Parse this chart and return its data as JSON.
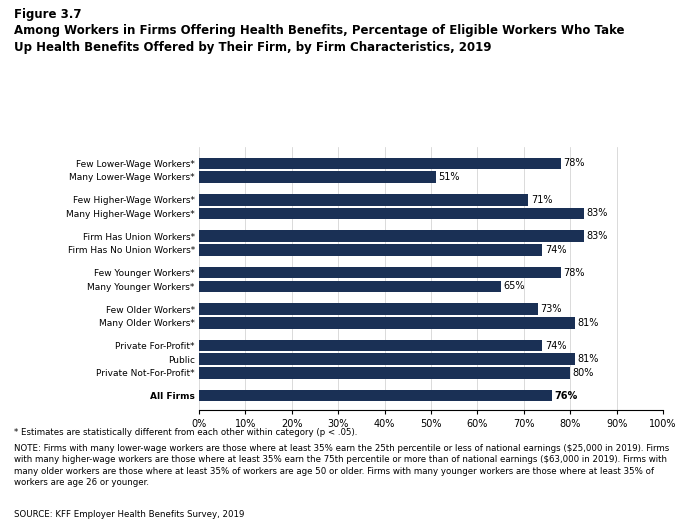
{
  "title_line1": "Figure 3.7",
  "title_line2": "Among Workers in Firms Offering Health Benefits, Percentage of Eligible Workers Who Take\nUp Health Benefits Offered by Their Firm, by Firm Characteristics, 2019",
  "groups": [
    [
      [
        "Few Lower-Wage Workers*",
        78
      ],
      [
        "Many Lower-Wage Workers*",
        51
      ]
    ],
    [
      [
        "Few Higher-Wage Workers*",
        71
      ],
      [
        "Many Higher-Wage Workers*",
        83
      ]
    ],
    [
      [
        "Firm Has Union Workers*",
        83
      ],
      [
        "Firm Has No Union Workers*",
        74
      ]
    ],
    [
      [
        "Few Younger Workers*",
        78
      ],
      [
        "Many Younger Workers*",
        65
      ]
    ],
    [
      [
        "Few Older Workers*",
        73
      ],
      [
        "Many Older Workers*",
        81
      ]
    ],
    [
      [
        "Private For-Profit*",
        74
      ],
      [
        "Public",
        81
      ],
      [
        "Private Not-For-Profit*",
        80
      ]
    ],
    [
      [
        "All Firms",
        76
      ]
    ]
  ],
  "bar_color": "#1a3055",
  "xlim": [
    0,
    100
  ],
  "xtick_labels": [
    "0%",
    "10%",
    "20%",
    "30%",
    "40%",
    "50%",
    "60%",
    "70%",
    "80%",
    "90%",
    "100%"
  ],
  "xtick_values": [
    0,
    10,
    20,
    30,
    40,
    50,
    60,
    70,
    80,
    90,
    100
  ],
  "footnote1": "* Estimates are statistically different from each other within category (p < .05).",
  "footnote2": "NOTE: Firms with many lower-wage workers are those where at least 35% earn the 25th percentile or less of national earnings ($25,000 in 2019). Firms\nwith many higher-wage workers are those where at least 35% earn the 75th percentile or more than of national earnings ($63,000 in 2019). Firms with\nmany older workers are those where at least 35% of workers are age 50 or older. Firms with many younger workers are those where at least 35% of\nworkers are age 26 or younger.",
  "footnote3": "SOURCE: KFF Employer Health Benefits Survey, 2019"
}
